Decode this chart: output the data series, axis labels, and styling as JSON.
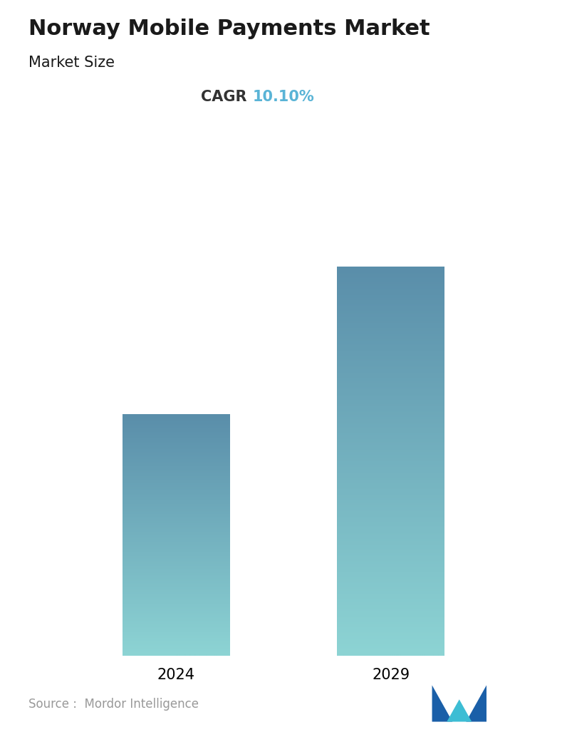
{
  "title": "Norway Mobile Payments Market",
  "subtitle": "Market Size",
  "cagr_label": "CAGR",
  "cagr_value": "10.10%",
  "cagr_color": "#5ab4d6",
  "categories": [
    "2024",
    "2029"
  ],
  "values": [
    1.0,
    1.6105
  ],
  "bar_color_top": "#5a8eaa",
  "bar_color_bottom": "#8dd4d4",
  "background_color": "#ffffff",
  "title_fontsize": 22,
  "subtitle_fontsize": 15,
  "cagr_fontsize": 15,
  "tick_fontsize": 15,
  "source_text": "Source :  Mordor Intelligence",
  "source_fontsize": 12,
  "bar_width": 0.22
}
